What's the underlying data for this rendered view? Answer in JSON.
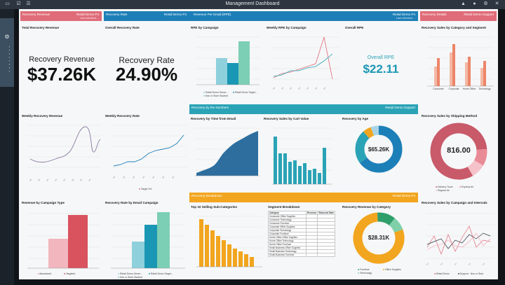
{
  "window": {
    "title": "Management Dashboard"
  },
  "top_icons": [
    "monitor-icon",
    "checkbox-icon",
    "list-icon",
    "bookmark-icon",
    "user-icon",
    "gear-icon",
    "close-icon"
  ],
  "colors": {
    "pink": "#e06c79",
    "blue": "#1d7fb7",
    "teal": "#2aa3b6",
    "orange": "#f2a51e",
    "salmon": "#ec8569",
    "green": "#6cc2a0"
  },
  "headers": {
    "recovery_revenue": {
      "label": "Recovery Revenue",
      "right": "Retail Demo P4",
      "sub": "Last refreshed ..."
    },
    "recovery_rate": {
      "label": "Recovery Rate",
      "right": "Retail Demo P4"
    },
    "rpe": {
      "label": "Revenue Per Email (RPE)",
      "right": "Retail Demo P4",
      "sub": "Last refreshed ..."
    },
    "recovery_details": {
      "label": "Recovery Details",
      "right": "Retail Demo Support"
    },
    "by_numbers": {
      "label": "Recovery by the Numbers",
      "right": "Retail Demo Support"
    },
    "breakdown": {
      "label": "Recovery Breakdown",
      "right": "Retail Demo P4"
    }
  },
  "kpis": {
    "total_revenue": {
      "title": "Total Recovery Revenue",
      "label": "Recovery Revenue",
      "value": "$37.26K"
    },
    "overall_rate": {
      "title": "Overall Recovery Rate",
      "label": "Recovery Rate",
      "value": "24.90%"
    },
    "overall_rpe": {
      "title": "Overall RPE",
      "label": "Overall RPE",
      "value": "$22.11"
    }
  },
  "panels": {
    "rpe_campaign": {
      "title": "RPE by Campaign",
      "legend": [
        "Retail Demo Genar...",
        "Retail Demo Target...",
        "Non or Store Student"
      ]
    },
    "weekly_rpe": {
      "title": "Weekly RPE by Campaign"
    },
    "sales_cat_segment": {
      "title": "Recovery Sales by Category and Segment",
      "categories": [
        "Consumer",
        "Corporate",
        "Home Office",
        "Technology"
      ]
    },
    "weekly_revenue": {
      "title": "Weekly Recovery Revenue"
    },
    "weekly_rate": {
      "title": "Weekly Recovery Rate",
      "legend": "Target 4%"
    },
    "time_email": {
      "title": "Recovery by Time from Email"
    },
    "sales_cart_value": {
      "title": "Recovery Sales by Cart Value"
    },
    "by_age": {
      "title": "Recovery by Age",
      "center": "$65.26K"
    },
    "shipping": {
      "title": "Recovery Sales by Shipping Method",
      "center": "816.00",
      "legend": [
        "Delivery Truck",
        "Express Air",
        "Regular Air"
      ]
    },
    "campaign_type": {
      "title": "Revenue by Campaign Type",
      "legend": [
        "Abandoned",
        "Targeted"
      ]
    },
    "rate_email": {
      "title": "Recovery Rate by Email Campaign",
      "legend": [
        "Retail Demo Gener...",
        "Retail Demo Target...",
        "Non or Store Student"
      ]
    },
    "sub_categories": {
      "title": "Top 10 Selling Sub-Categories"
    },
    "segment": {
      "title": "Segment Breakdown",
      "columns": [
        "Category",
        "Revenue",
        "Returned Rate"
      ],
      "rows": [
        [
          "Consumer Office Supplies",
          "",
          ""
        ],
        [
          "Consumer Technology",
          "",
          ""
        ],
        [
          "Consumer Furniture",
          "",
          ""
        ],
        [
          "Corporate Office Supplies",
          "",
          ""
        ],
        [
          "Corporate Technology",
          "",
          ""
        ],
        [
          "Corporate Furniture",
          "",
          ""
        ],
        [
          "Home Office Office Supplies",
          "",
          ""
        ],
        [
          "Home Office Technology",
          "",
          ""
        ],
        [
          "Home Office Furniture",
          "",
          ""
        ],
        [
          "Small Business Office Supplies",
          "",
          ""
        ],
        [
          "Small Business Technology",
          "",
          ""
        ],
        [
          "Small Business Furniture",
          "",
          ""
        ]
      ]
    },
    "rev_category": {
      "title": "Recovery Revenue by Category",
      "center": "$28.31K",
      "legend": [
        "Furniture",
        "Office Supplies",
        "Technology"
      ]
    },
    "campaign_intervals": {
      "title": "Recovery Sales by Campaign and Intervals",
      "legend": [
        "Retail Demo",
        "Support - Non or Stud"
      ]
    }
  }
}
